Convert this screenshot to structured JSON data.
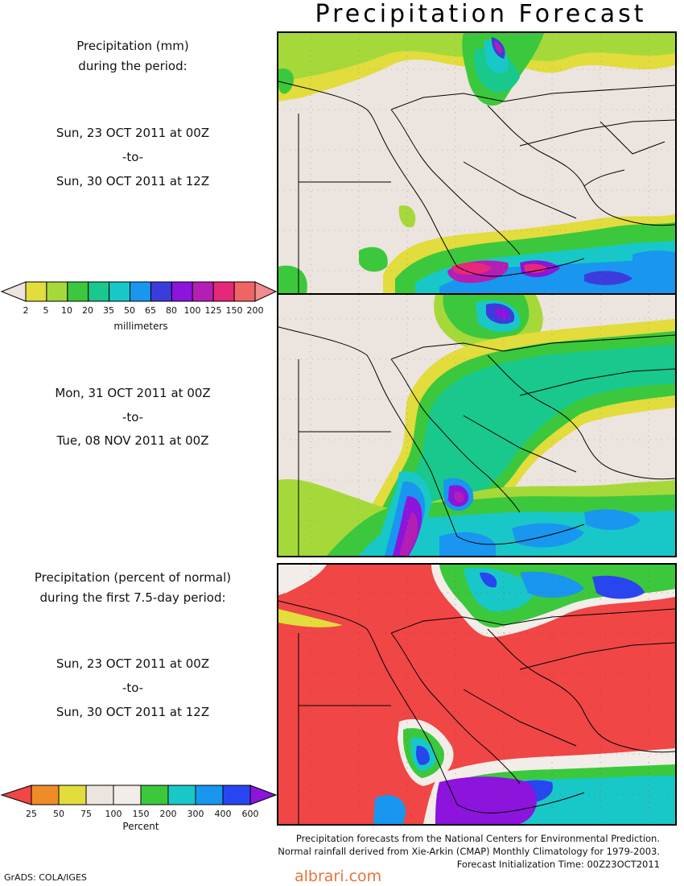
{
  "title": "Precipitation Forecast",
  "panel1": {
    "heading": [
      "Precipitation (mm)",
      "during the period:"
    ],
    "start": "Sun, 23 OCT 2011 at 00Z",
    "to": "-to-",
    "end": "Sun, 30 OCT 2011 at 12Z"
  },
  "panel2": {
    "start": "Mon, 31 OCT 2011 at 00Z",
    "to": "-to-",
    "end": "Tue, 08 NOV 2011 at 00Z"
  },
  "panel3": {
    "heading": [
      "Precipitation (percent of normal)",
      "during the first 7.5-day period:"
    ],
    "start": "Sun, 23 OCT 2011 at 00Z",
    "to": "-to-",
    "end": "Sun, 30 OCT 2011 at 12Z"
  },
  "mm_colorbar": {
    "labels": [
      "2",
      "5",
      "10",
      "20",
      "35",
      "50",
      "65",
      "80",
      "100",
      "125",
      "150",
      "200"
    ],
    "colors": [
      "#ece4de",
      "#e2dc3c",
      "#a5d93a",
      "#3cc83c",
      "#18c88c",
      "#18c8c8",
      "#1896f0",
      "#3c3cdc",
      "#8c14dc",
      "#b41eb4",
      "#e6287a",
      "#f06464",
      "#f08c8c"
    ],
    "unit": "millimeters"
  },
  "pct_colorbar": {
    "labels": [
      "25",
      "50",
      "75",
      "100",
      "150",
      "200",
      "300",
      "400",
      "600"
    ],
    "colors": [
      "#f04646",
      "#f08c28",
      "#e2dc3c",
      "#ece4de",
      "#f2ede8",
      "#3cc83c",
      "#18c8c8",
      "#1896f0",
      "#2846f0",
      "#8c14dc"
    ],
    "unit": "Percent"
  },
  "footer": [
    "Precipitation forecasts from the National Centers for Environmental Prediction.",
    "Normal rainfall derived from Xie-Arkin (CMAP) Monthly Climatology for 1979-2003.",
    "Forecast Initialization Time: 00Z23OCT2011"
  ],
  "credit": "GrADS: COLA/IGES",
  "watermark": "albrari.com"
}
